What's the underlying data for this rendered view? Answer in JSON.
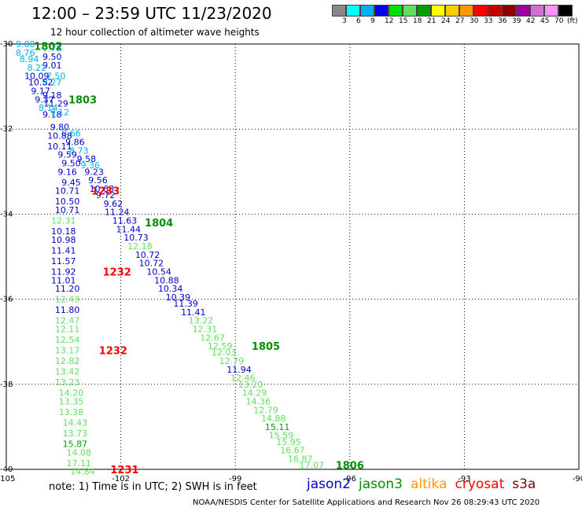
{
  "title": "12:00 – 23:59 UTC 11/23/2020",
  "subtitle": "12 hour collection of altimeter wave heights",
  "legend": {
    "unit": "(ft)",
    "colors": [
      "#888888",
      "#00ffff",
      "#00b0f0",
      "#0000ff",
      "#00e000",
      "#60e060",
      "#00a000",
      "#ffff00",
      "#ffcc00",
      "#ff9900",
      "#ff0000",
      "#c80000",
      "#900000",
      "#a000a0",
      "#d070d0",
      "#ff90ff",
      "#000000"
    ],
    "labels": [
      "3",
      "6",
      "9",
      "12",
      "15",
      "18",
      "21",
      "24",
      "27",
      "30",
      "33",
      "36",
      "39",
      "42",
      "45",
      "70"
    ]
  },
  "note": "note: 1) Time is in UTC; 2) SWH is in feet",
  "satellites": [
    {
      "name": "jason2",
      "color": "#0000cc"
    },
    {
      "name": "jason3",
      "color": "#009000"
    },
    {
      "name": "altika",
      "color": "#ff9900"
    },
    {
      "name": "cryosat",
      "color": "#ff0000"
    },
    {
      "name": "s3a",
      "color": "#800000"
    }
  ],
  "credit": "NOAA/NESDIS Center for Satellite Applications and Research   Nov 26 08:29:43 UTC 2020",
  "chart_data": {
    "type": "scatter",
    "xlabel": "",
    "ylabel": "",
    "xlim": [
      -105,
      -90
    ],
    "ylim": [
      -40,
      -30
    ],
    "x_ticks": [
      "-105",
      "-102",
      "-99",
      "-96",
      "-93",
      "-90"
    ],
    "y_ticks": [
      "-30",
      "-32",
      "-34",
      "-36",
      "-38",
      "-40"
    ],
    "grid": true,
    "points": [
      {
        "lon": -104.5,
        "lat": -30.0,
        "v": "9.00",
        "c": "#00b0f0"
      },
      {
        "lon": -103.8,
        "lat": -30.1,
        "v": "7.78",
        "c": "#00b0f0"
      },
      {
        "lon": -104.5,
        "lat": -30.2,
        "v": "8.76",
        "c": "#00b0f0"
      },
      {
        "lon": -103.8,
        "lat": -30.3,
        "v": "9.50",
        "c": "#0000cc"
      },
      {
        "lon": -104.4,
        "lat": -30.35,
        "v": "8.94",
        "c": "#00b0f0"
      },
      {
        "lon": -103.8,
        "lat": -30.5,
        "v": "9.01",
        "c": "#0000cc"
      },
      {
        "lon": -104.2,
        "lat": -30.55,
        "v": "8.22",
        "c": "#00b0f0"
      },
      {
        "lon": -104.2,
        "lat": -30.75,
        "v": "10.09",
        "c": "#0000cc"
      },
      {
        "lon": -103.7,
        "lat": -30.75,
        "v": "7.50",
        "c": "#00b0f0"
      },
      {
        "lon": -103.8,
        "lat": -30.9,
        "v": "8.27",
        "c": "#00b0f0"
      },
      {
        "lon": -104.1,
        "lat": -30.9,
        "v": "10.52",
        "c": "#0000cc"
      },
      {
        "lon": -104.1,
        "lat": -31.1,
        "v": "9.17",
        "c": "#0000cc"
      },
      {
        "lon": -103.8,
        "lat": -31.2,
        "v": "9.18",
        "c": "#0000cc"
      },
      {
        "lon": -104.0,
        "lat": -31.3,
        "v": "9.37",
        "c": "#0000cc"
      },
      {
        "lon": -103.7,
        "lat": -31.4,
        "v": "11.29",
        "c": "#0000cc"
      },
      {
        "lon": -103.9,
        "lat": -31.5,
        "v": "8.14",
        "c": "#00b0f0"
      },
      {
        "lon": -103.8,
        "lat": -31.65,
        "v": "9.18",
        "c": "#0000cc"
      },
      {
        "lon": -103.6,
        "lat": -31.6,
        "v": "9.12",
        "c": "#00b0f0"
      },
      {
        "lon": -103.6,
        "lat": -31.95,
        "v": "9.80",
        "c": "#0000cc"
      },
      {
        "lon": -103.3,
        "lat": -32.1,
        "v": "8.66",
        "c": "#00b0f0"
      },
      {
        "lon": -103.6,
        "lat": -32.15,
        "v": "10.88",
        "c": "#0000cc"
      },
      {
        "lon": -103.2,
        "lat": -32.3,
        "v": "9.86",
        "c": "#0000cc"
      },
      {
        "lon": -103.6,
        "lat": -32.4,
        "v": "10.11",
        "c": "#0000cc"
      },
      {
        "lon": -103.1,
        "lat": -32.5,
        "v": "8.73",
        "c": "#00b0f0"
      },
      {
        "lon": -103.4,
        "lat": -32.6,
        "v": "9.59",
        "c": "#0000cc"
      },
      {
        "lon": -102.9,
        "lat": -32.7,
        "v": "9.58",
        "c": "#0000cc"
      },
      {
        "lon": -103.3,
        "lat": -32.8,
        "v": "9.50",
        "c": "#0000cc"
      },
      {
        "lon": -102.8,
        "lat": -32.85,
        "v": "9.36",
        "c": "#00b0f0"
      },
      {
        "lon": -103.4,
        "lat": -33.0,
        "v": "9.16",
        "c": "#0000cc"
      },
      {
        "lon": -102.7,
        "lat": -33.0,
        "v": "9.23",
        "c": "#0000cc"
      },
      {
        "lon": -102.6,
        "lat": -33.2,
        "v": "9.56",
        "c": "#0000cc"
      },
      {
        "lon": -103.3,
        "lat": -33.25,
        "v": "9.45",
        "c": "#0000cc"
      },
      {
        "lon": -102.5,
        "lat": -33.4,
        "v": "10.68",
        "c": "#0000cc"
      },
      {
        "lon": -103.4,
        "lat": -33.45,
        "v": "10.71",
        "c": "#0000cc"
      },
      {
        "lon": -102.4,
        "lat": -33.55,
        "v": "9.72",
        "c": "#0000cc"
      },
      {
        "lon": -103.4,
        "lat": -33.7,
        "v": "10.50",
        "c": "#0000cc"
      },
      {
        "lon": -102.2,
        "lat": -33.75,
        "v": "9.62",
        "c": "#0000cc"
      },
      {
        "lon": -103.4,
        "lat": -33.9,
        "v": "10.71",
        "c": "#0000cc"
      },
      {
        "lon": -102.1,
        "lat": -33.95,
        "v": "11.24",
        "c": "#0000cc"
      },
      {
        "lon": -103.5,
        "lat": -34.15,
        "v": "12.31",
        "c": "#60e060"
      },
      {
        "lon": -101.9,
        "lat": -34.15,
        "v": "11.63",
        "c": "#0000cc"
      },
      {
        "lon": -101.8,
        "lat": -34.35,
        "v": "11.44",
        "c": "#0000cc"
      },
      {
        "lon": -103.5,
        "lat": -34.4,
        "v": "10.18",
        "c": "#0000cc"
      },
      {
        "lon": -101.6,
        "lat": -34.55,
        "v": "10.73",
        "c": "#0000cc"
      },
      {
        "lon": -103.5,
        "lat": -34.6,
        "v": "10.98",
        "c": "#0000cc"
      },
      {
        "lon": -101.5,
        "lat": -34.75,
        "v": "12.18",
        "c": "#60e060"
      },
      {
        "lon": -103.5,
        "lat": -34.85,
        "v": "11.41",
        "c": "#0000cc"
      },
      {
        "lon": -101.3,
        "lat": -34.95,
        "v": "10.72",
        "c": "#0000cc"
      },
      {
        "lon": -103.5,
        "lat": -35.1,
        "v": "11.57",
        "c": "#0000cc"
      },
      {
        "lon": -101.2,
        "lat": -35.15,
        "v": "10.72",
        "c": "#0000cc"
      },
      {
        "lon": -101.0,
        "lat": -35.35,
        "v": "10.54",
        "c": "#0000cc"
      },
      {
        "lon": -103.5,
        "lat": -35.35,
        "v": "11.92",
        "c": "#0000cc"
      },
      {
        "lon": -103.5,
        "lat": -35.55,
        "v": "11.01",
        "c": "#0000cc"
      },
      {
        "lon": -100.8,
        "lat": -35.55,
        "v": "10.88",
        "c": "#0000cc"
      },
      {
        "lon": -100.7,
        "lat": -35.75,
        "v": "10.34",
        "c": "#0000cc"
      },
      {
        "lon": -103.4,
        "lat": -35.75,
        "v": "11.20",
        "c": "#0000cc"
      },
      {
        "lon": -100.5,
        "lat": -35.95,
        "v": "10.39",
        "c": "#0000cc"
      },
      {
        "lon": -103.4,
        "lat": -36.0,
        "v": "12.43",
        "c": "#60e060"
      },
      {
        "lon": -100.3,
        "lat": -36.1,
        "v": "11.39",
        "c": "#0000cc"
      },
      {
        "lon": -103.4,
        "lat": -36.25,
        "v": "11.80",
        "c": "#0000cc"
      },
      {
        "lon": -100.1,
        "lat": -36.3,
        "v": "11.41",
        "c": "#0000cc"
      },
      {
        "lon": -103.4,
        "lat": -36.5,
        "v": "12.47",
        "c": "#60e060"
      },
      {
        "lon": -99.9,
        "lat": -36.5,
        "v": "13.22",
        "c": "#60e060"
      },
      {
        "lon": -99.8,
        "lat": -36.7,
        "v": "12.31",
        "c": "#60e060"
      },
      {
        "lon": -103.4,
        "lat": -36.7,
        "v": "12.11",
        "c": "#60e060"
      },
      {
        "lon": -99.6,
        "lat": -36.9,
        "v": "12.67",
        "c": "#60e060"
      },
      {
        "lon": -103.4,
        "lat": -36.95,
        "v": "12.54",
        "c": "#60e060"
      },
      {
        "lon": -99.4,
        "lat": -37.1,
        "v": "12.59",
        "c": "#60e060"
      },
      {
        "lon": -103.4,
        "lat": -37.2,
        "v": "13.17",
        "c": "#60e060"
      },
      {
        "lon": -99.3,
        "lat": -37.25,
        "v": "12.03",
        "c": "#60e060"
      },
      {
        "lon": -103.4,
        "lat": -37.45,
        "v": "12.82",
        "c": "#60e060"
      },
      {
        "lon": -99.1,
        "lat": -37.45,
        "v": "12.79",
        "c": "#60e060"
      },
      {
        "lon": -98.9,
        "lat": -37.65,
        "v": "11.94",
        "c": "#0000cc"
      },
      {
        "lon": -103.4,
        "lat": -37.7,
        "v": "13.42",
        "c": "#60e060"
      },
      {
        "lon": -98.8,
        "lat": -37.85,
        "v": "12.46",
        "c": "#60e060"
      },
      {
        "lon": -103.4,
        "lat": -37.95,
        "v": "13.23",
        "c": "#60e060"
      },
      {
        "lon": -98.6,
        "lat": -38.0,
        "v": "13.20",
        "c": "#60e060"
      },
      {
        "lon": -103.3,
        "lat": -38.2,
        "v": "14.20",
        "c": "#60e060"
      },
      {
        "lon": -98.5,
        "lat": -38.2,
        "v": "14.29",
        "c": "#60e060"
      },
      {
        "lon": -98.4,
        "lat": -38.4,
        "v": "14.36",
        "c": "#60e060"
      },
      {
        "lon": -103.3,
        "lat": -38.4,
        "v": "13.35",
        "c": "#60e060"
      },
      {
        "lon": -98.2,
        "lat": -38.6,
        "v": "12.79",
        "c": "#60e060"
      },
      {
        "lon": -103.3,
        "lat": -38.65,
        "v": "13.38",
        "c": "#60e060"
      },
      {
        "lon": -98.0,
        "lat": -38.8,
        "v": "14.88",
        "c": "#60e060"
      },
      {
        "lon": -103.2,
        "lat": -38.9,
        "v": "14.43",
        "c": "#60e060"
      },
      {
        "lon": -97.9,
        "lat": -39.0,
        "v": "15.11",
        "c": "#00a000"
      },
      {
        "lon": -103.2,
        "lat": -39.15,
        "v": "13.73",
        "c": "#60e060"
      },
      {
        "lon": -97.8,
        "lat": -39.2,
        "v": "15.59",
        "c": "#60e060"
      },
      {
        "lon": -103.2,
        "lat": -39.4,
        "v": "15.87",
        "c": "#00a000"
      },
      {
        "lon": -97.6,
        "lat": -39.35,
        "v": "15.95",
        "c": "#60e060"
      },
      {
        "lon": -97.5,
        "lat": -39.55,
        "v": "16.67",
        "c": "#60e060"
      },
      {
        "lon": -103.1,
        "lat": -39.6,
        "v": "14.08",
        "c": "#60e060"
      },
      {
        "lon": -97.3,
        "lat": -39.75,
        "v": "16.87",
        "c": "#60e060"
      },
      {
        "lon": -103.1,
        "lat": -39.85,
        "v": "17.11",
        "c": "#60e060"
      },
      {
        "lon": -97.0,
        "lat": -39.9,
        "v": "17.07",
        "c": "#60e060"
      },
      {
        "lon": -103.0,
        "lat": -40.05,
        "v": "14.84",
        "c": "#60e060"
      }
    ],
    "pass_labels": [
      {
        "lon": -103.9,
        "lat": -30.05,
        "t": "1802",
        "c": "#009000"
      },
      {
        "lon": -103.0,
        "lat": -31.3,
        "t": "1803",
        "c": "#009000"
      },
      {
        "lon": -102.4,
        "lat": -33.45,
        "t": "1233",
        "c": "#ff0000"
      },
      {
        "lon": -101.0,
        "lat": -34.2,
        "t": "1804",
        "c": "#009000"
      },
      {
        "lon": -102.1,
        "lat": -35.35,
        "t": "1232",
        "c": "#ff0000"
      },
      {
        "lon": -102.2,
        "lat": -37.2,
        "t": "1232",
        "c": "#ff0000"
      },
      {
        "lon": -98.2,
        "lat": -37.1,
        "t": "1805",
        "c": "#009000"
      },
      {
        "lon": -101.9,
        "lat": -40.0,
        "t": "1231",
        "c": "#ff0000"
      },
      {
        "lon": -96.0,
        "lat": -39.9,
        "t": "1806",
        "c": "#009000"
      }
    ]
  }
}
